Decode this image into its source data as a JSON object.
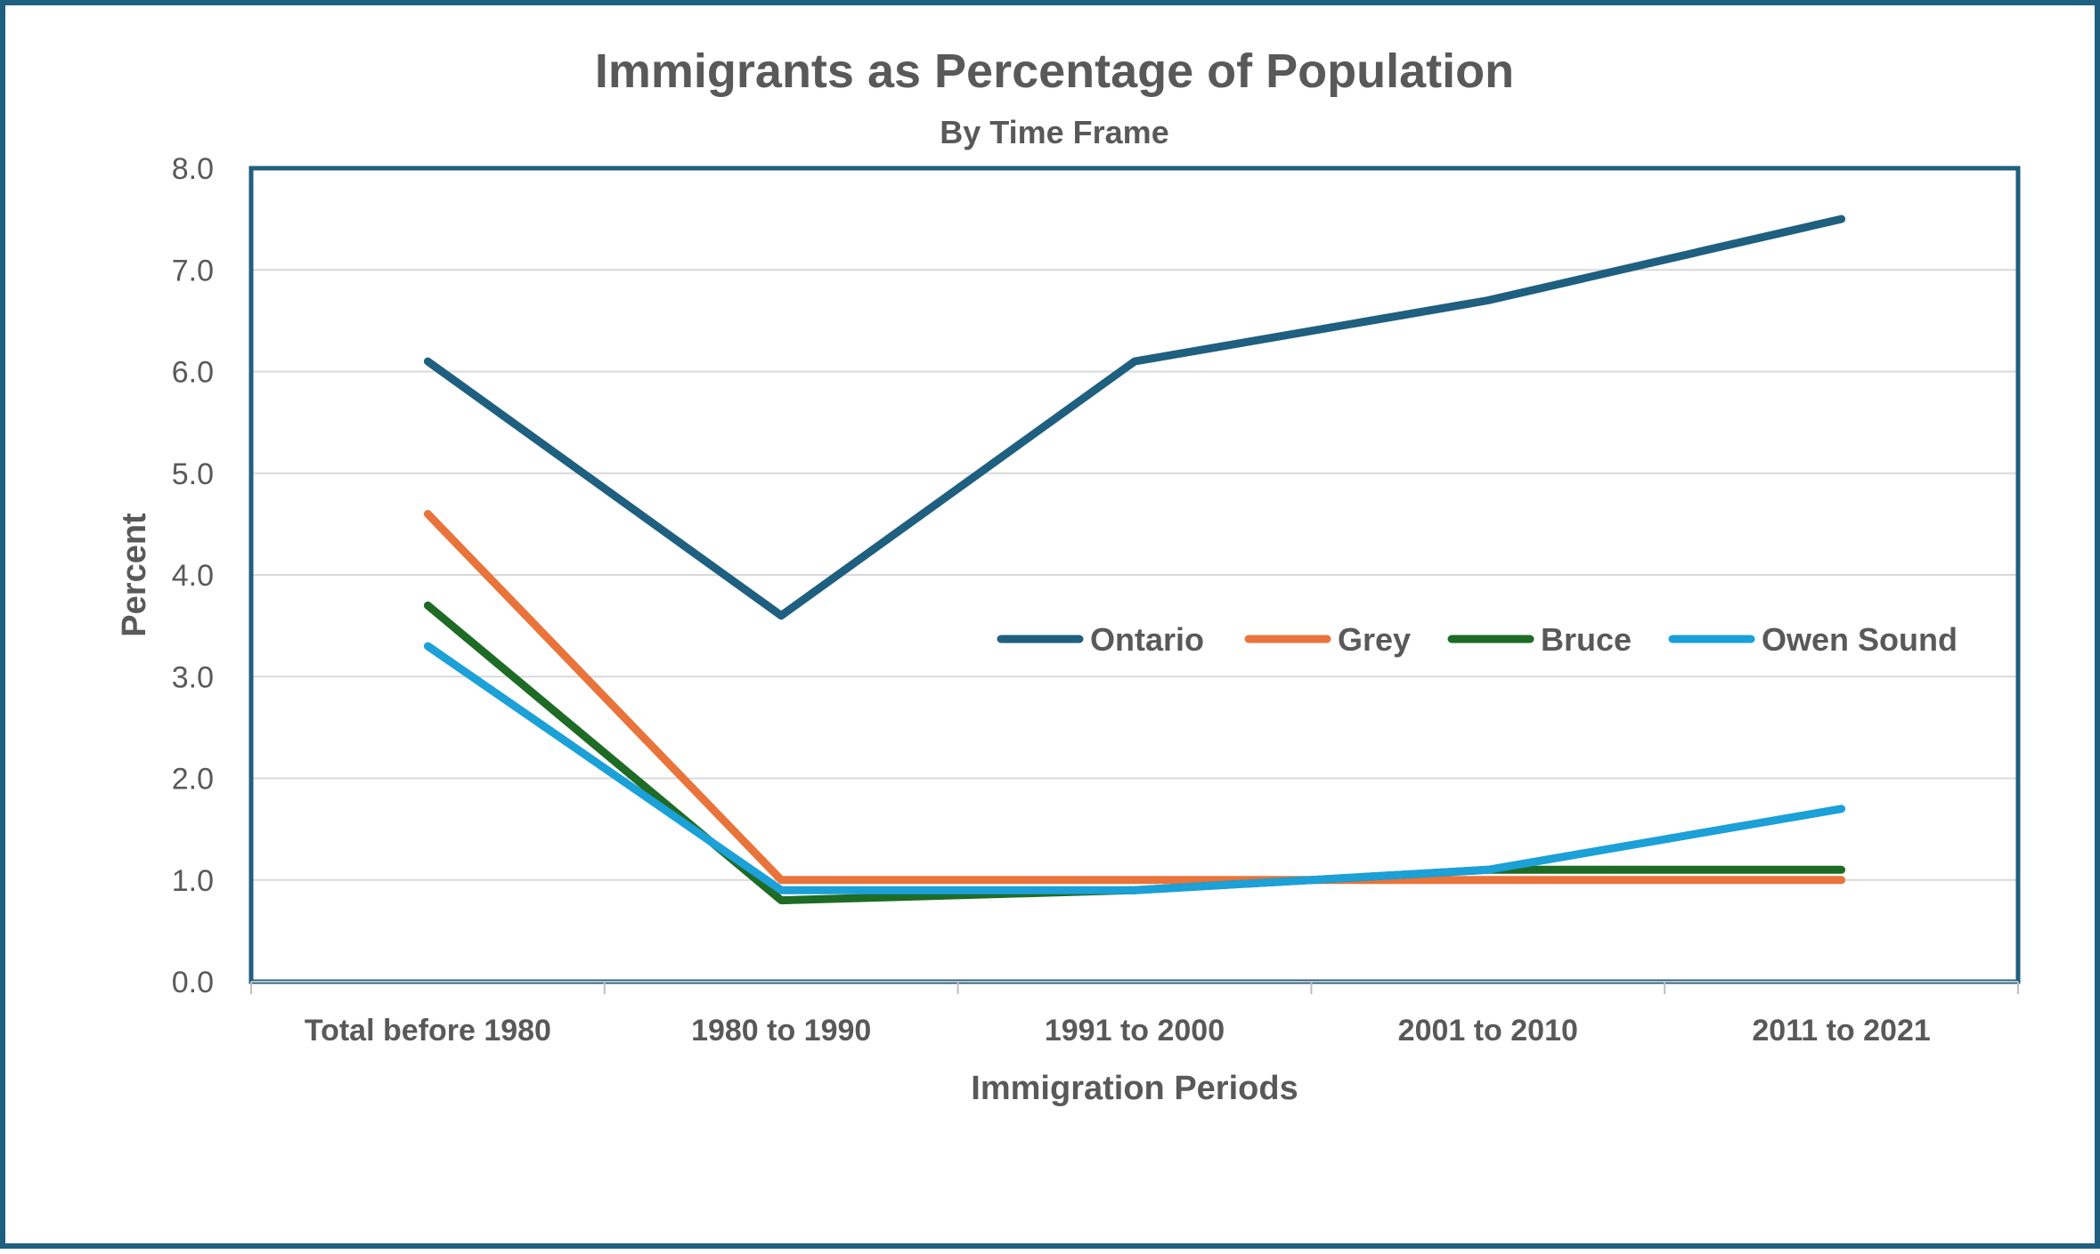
{
  "chart_data": {
    "type": "line",
    "title": "Immigrants as Percentage of Population",
    "subtitle": "By Time Frame",
    "xlabel": "Immigration Periods",
    "ylabel": "Percent",
    "ylim": [
      0,
      8
    ],
    "yticks": [
      "0.0",
      "1.0",
      "2.0",
      "3.0",
      "4.0",
      "5.0",
      "6.0",
      "7.0",
      "8.0"
    ],
    "ytick_values": [
      0,
      1,
      2,
      3,
      4,
      5,
      6,
      7,
      8
    ],
    "grid": true,
    "legend_position": "inside-right",
    "categories": [
      "Total before 1980",
      "1980 to 1990",
      "1991 to 2000",
      "2001 to 2010",
      "2011 to 2021"
    ],
    "series": [
      {
        "name": "Ontario",
        "color": "#1f5f80",
        "values": [
          6.1,
          3.6,
          6.1,
          6.7,
          7.5
        ]
      },
      {
        "name": "Grey",
        "color": "#e8743b",
        "values": [
          4.6,
          1.0,
          1.0,
          1.0,
          1.0
        ]
      },
      {
        "name": "Bruce",
        "color": "#1e6b26",
        "values": [
          3.7,
          0.8,
          0.9,
          1.1,
          1.1
        ]
      },
      {
        "name": "Owen Sound",
        "color": "#1ba0d7",
        "values": [
          3.3,
          0.9,
          0.9,
          1.1,
          1.7
        ]
      }
    ]
  }
}
